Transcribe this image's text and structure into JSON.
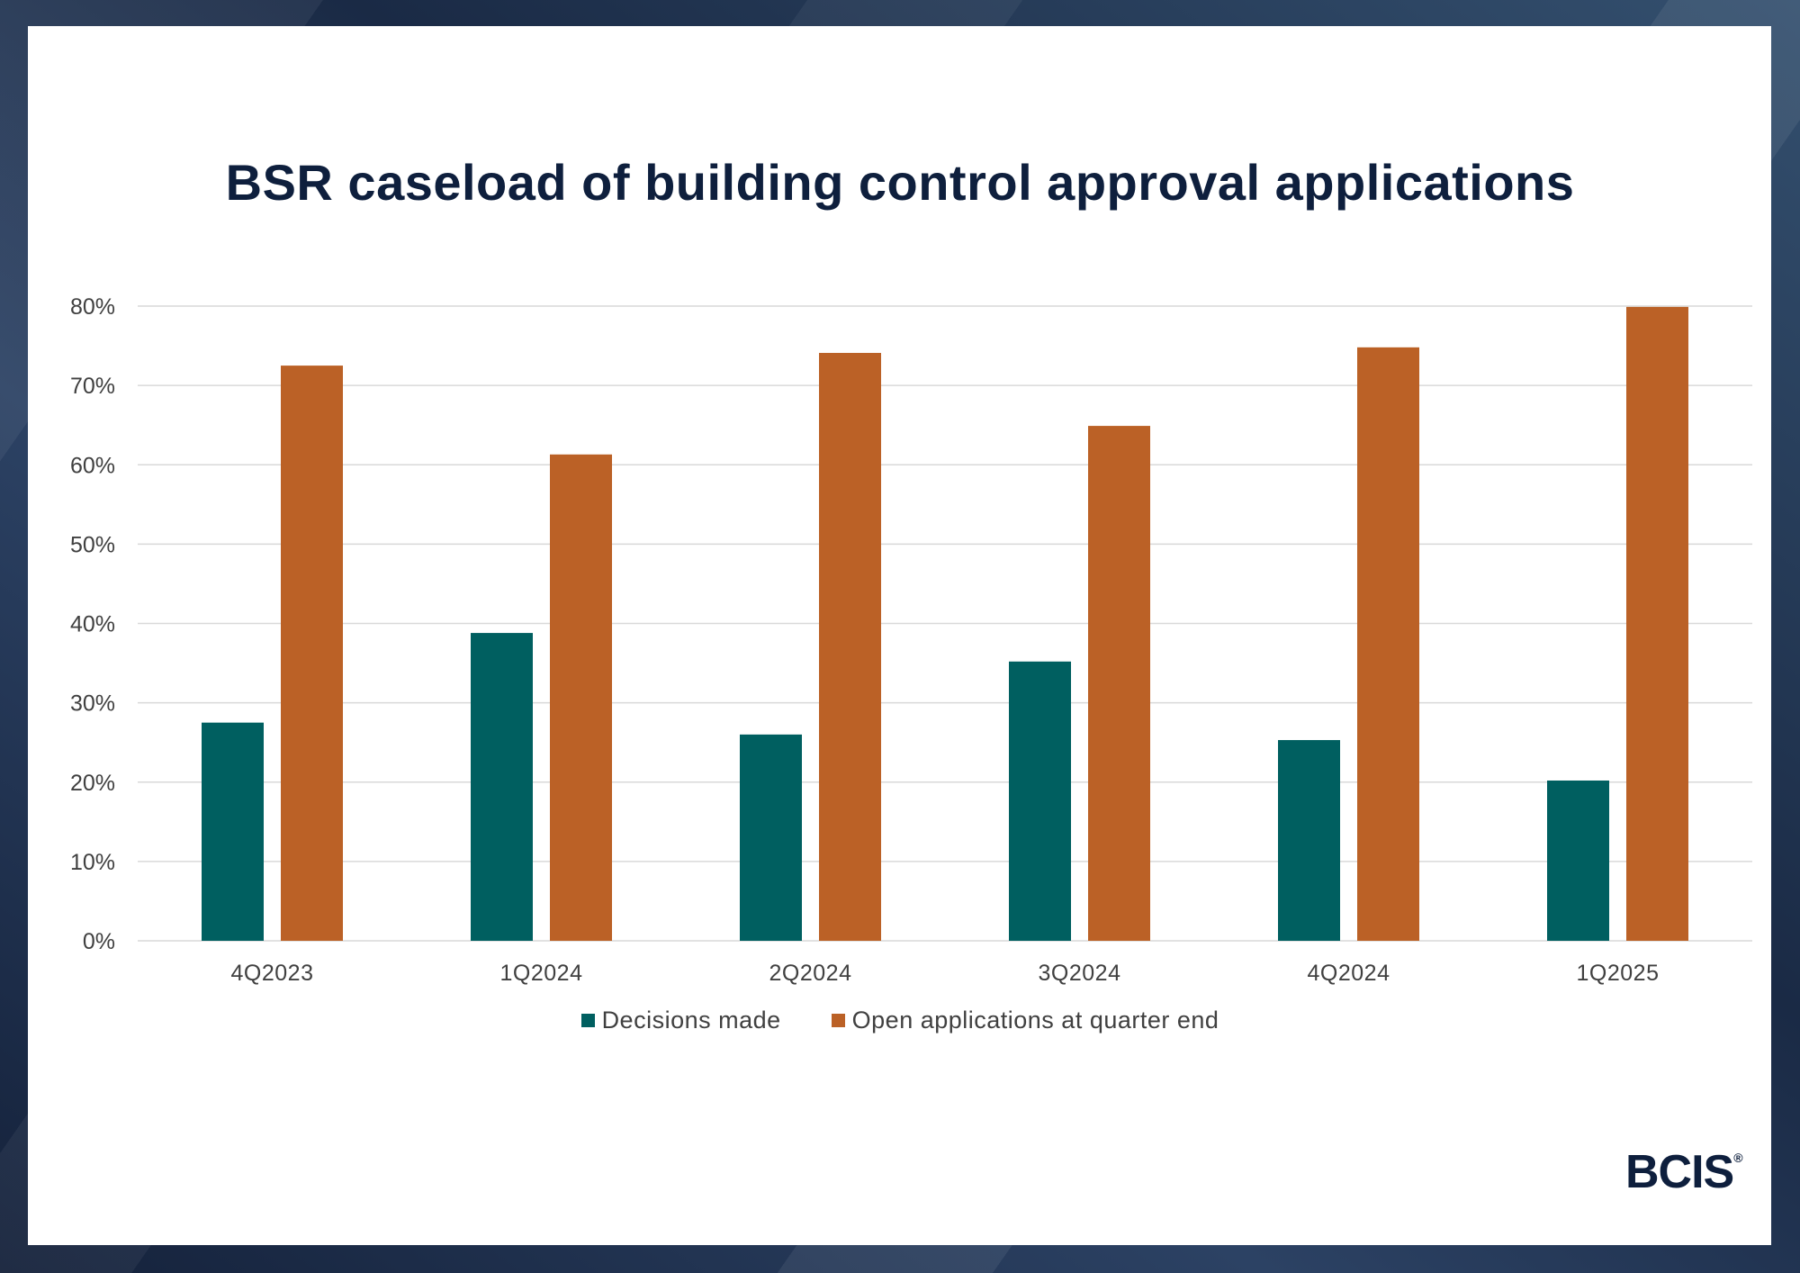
{
  "chart_data": {
    "type": "bar",
    "title": "BSR caseload of building control approval applications",
    "categories": [
      "4Q2023",
      "1Q2024",
      "2Q2024",
      "3Q2024",
      "4Q2024",
      "1Q2025"
    ],
    "series": [
      {
        "name": "Decisions made",
        "color": "#005f60",
        "values": [
          27.5,
          38.8,
          26.0,
          35.2,
          25.3,
          20.2
        ]
      },
      {
        "name": "Open applications at quarter end",
        "color": "#bb6126",
        "values": [
          72.5,
          61.3,
          74.1,
          64.9,
          74.8,
          79.9
        ]
      }
    ],
    "ylim": [
      0,
      80
    ],
    "yticks": [
      0,
      10,
      20,
      30,
      40,
      50,
      60,
      70,
      80
    ],
    "ytick_suffix": "%",
    "grid": true,
    "legend_position": "bottom"
  },
  "logo": {
    "text": "BCIS",
    "mark": "®"
  }
}
